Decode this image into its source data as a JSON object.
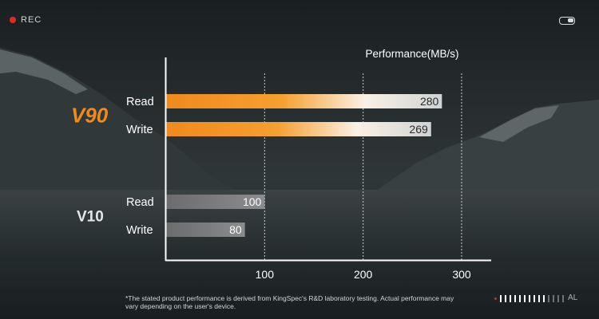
{
  "rec_label": "REC",
  "footnote": "*The stated product performance is derived from KingSpec's R&D laboratory testing. Actual performance may vary depending on the user's device.",
  "indicator_label": "AL",
  "colors": {
    "v90_accent": "#f08a1c",
    "v10_bar": "#7a7c7d",
    "rec_dot": "#e5281f"
  },
  "chart_data": {
    "type": "bar",
    "orientation": "horizontal",
    "title": "Performance(MB/s)",
    "xlim": [
      0,
      300
    ],
    "xticks": [
      100,
      200,
      300
    ],
    "grid": "vertical dashed",
    "groups": [
      {
        "name": "V90",
        "bars": [
          {
            "label": "Read",
            "value": 280
          },
          {
            "label": "Write",
            "value": 269
          }
        ]
      },
      {
        "name": "V10",
        "bars": [
          {
            "label": "Read",
            "value": 100
          },
          {
            "label": "Write",
            "value": 80
          }
        ]
      }
    ]
  }
}
